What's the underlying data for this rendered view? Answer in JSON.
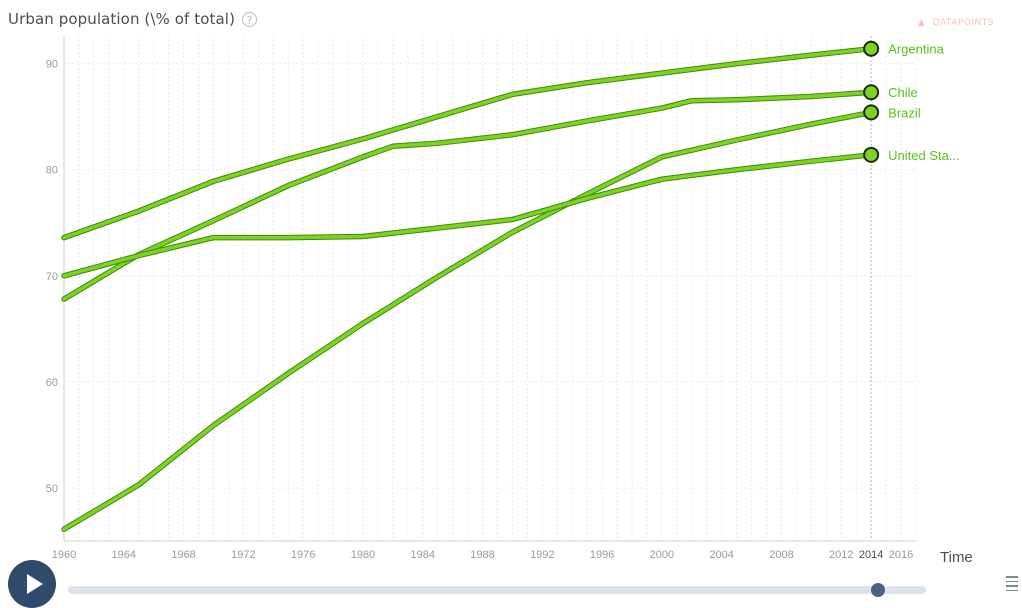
{
  "header": {
    "title": "Urban population (\\% of total)",
    "help_glyph": "?",
    "datapoints_label": "DATAPOINTS",
    "datapoints_glyph": "▲"
  },
  "chart_data": {
    "type": "line",
    "title": "Urban population (\\% of total)",
    "xlabel": "Time",
    "ylabel": "Urban population (\\% of total)",
    "xlim": [
      1960,
      2017
    ],
    "ylim": [
      45,
      92.6
    ],
    "x_ticks": [
      1960,
      1964,
      1968,
      1972,
      1976,
      1980,
      1984,
      1988,
      1992,
      1996,
      2000,
      2004,
      2008,
      2012,
      2014,
      2016
    ],
    "y_ticks": [
      50,
      60,
      70,
      80,
      90
    ],
    "current_year": 2014,
    "grid": true,
    "line_color": "#7ed321",
    "series": [
      {
        "name": "Argentina",
        "label": "Argentina",
        "x": [
          1960,
          1965,
          1970,
          1975,
          1980,
          1985,
          1990,
          1995,
          2000,
          2005,
          2010,
          2014
        ],
        "y": [
          73.6,
          76.1,
          78.9,
          81.0,
          82.9,
          85.0,
          87.1,
          88.2,
          89.1,
          90.0,
          90.8,
          91.4
        ]
      },
      {
        "name": "Chile",
        "label": "Chile",
        "x": [
          1960,
          1965,
          1970,
          1975,
          1980,
          1982,
          1985,
          1990,
          1995,
          2000,
          2002,
          2005,
          2010,
          2014
        ],
        "y": [
          67.8,
          72.0,
          75.2,
          78.5,
          81.2,
          82.2,
          82.5,
          83.3,
          84.6,
          85.8,
          86.5,
          86.6,
          86.9,
          87.3
        ]
      },
      {
        "name": "Brazil",
        "label": "Brazil",
        "x": [
          1960,
          1965,
          1970,
          1975,
          1980,
          1985,
          1990,
          1995,
          2000,
          2005,
          2010,
          2014
        ],
        "y": [
          46.1,
          50.3,
          55.9,
          60.8,
          65.5,
          69.9,
          74.1,
          77.7,
          81.2,
          82.8,
          84.3,
          85.4
        ]
      },
      {
        "name": "United States",
        "label": "United Sta...",
        "x": [
          1960,
          1965,
          1970,
          1975,
          1980,
          1985,
          1990,
          1995,
          2000,
          2005,
          2010,
          2014
        ],
        "y": [
          70.0,
          71.9,
          73.6,
          73.6,
          73.7,
          74.5,
          75.3,
          77.3,
          79.1,
          80.0,
          80.8,
          81.4
        ]
      }
    ]
  }
}
